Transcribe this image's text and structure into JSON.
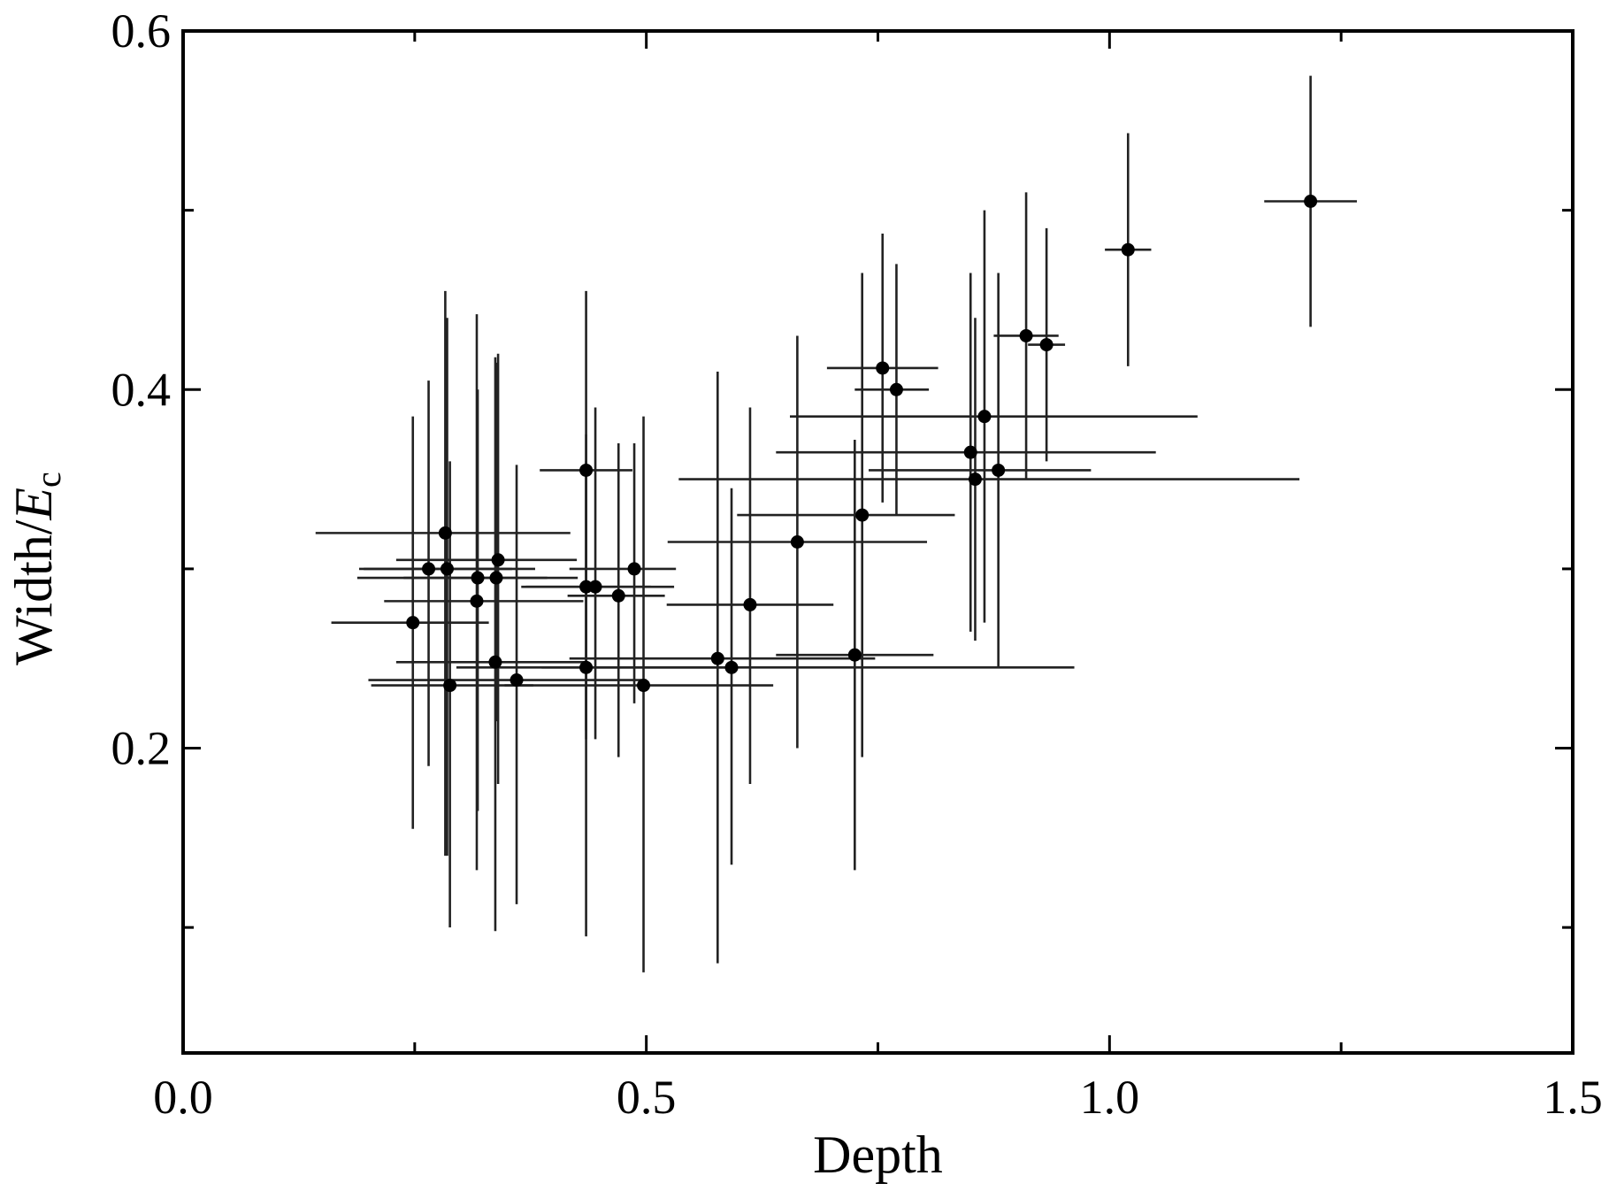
{
  "chart_data": {
    "type": "scatter",
    "title": "",
    "xlabel": "Depth",
    "ylabel_prefix": "Width/",
    "ylabel_var": "E",
    "ylabel_sub": "c",
    "xlim": [
      0.0,
      1.5
    ],
    "ylim": [
      0.03,
      0.6
    ],
    "x_ticks": [
      {
        "value": 0.0,
        "label": "0.0"
      },
      {
        "value": 0.5,
        "label": "0.5"
      },
      {
        "value": 1.0,
        "label": "1.0"
      },
      {
        "value": 1.5,
        "label": "1.5"
      }
    ],
    "x_minor_ticks": [
      0.25,
      0.75,
      1.25
    ],
    "y_ticks": [
      {
        "value": 0.2,
        "label": "0.2"
      },
      {
        "value": 0.4,
        "label": "0.4"
      },
      {
        "value": 0.6,
        "label": "0.6"
      }
    ],
    "y_minor_ticks": [
      0.1,
      0.3,
      0.5
    ],
    "grid": false,
    "marker_color": "#000000",
    "points": [
      {
        "x": 0.248,
        "y": 0.27,
        "xerr": [
          0.088,
          0.082
        ],
        "yerr": [
          0.115,
          0.115
        ]
      },
      {
        "x": 0.265,
        "y": 0.3,
        "xerr": [
          0.075,
          0.09
        ],
        "yerr": [
          0.11,
          0.105
        ]
      },
      {
        "x": 0.283,
        "y": 0.32,
        "xerr": [
          0.14,
          0.135
        ],
        "yerr": [
          0.18,
          0.135
        ]
      },
      {
        "x": 0.285,
        "y": 0.3,
        "xerr": [
          0.09,
          0.095
        ],
        "yerr": [
          0.16,
          0.14
        ]
      },
      {
        "x": 0.288,
        "y": 0.235,
        "xerr": [
          0.085,
          0.09
        ],
        "yerr": [
          0.135,
          0.125
        ]
      },
      {
        "x": 0.317,
        "y": 0.282,
        "xerr": [
          0.1,
          0.115
        ],
        "yerr": [
          0.15,
          0.16
        ]
      },
      {
        "x": 0.318,
        "y": 0.295,
        "xerr": [
          0.13,
          0.075
        ],
        "yerr": [
          0.13,
          0.105
        ]
      },
      {
        "x": 0.337,
        "y": 0.248,
        "xerr": [
          0.107,
          0.1
        ],
        "yerr": [
          0.15,
          0.17
        ]
      },
      {
        "x": 0.338,
        "y": 0.295,
        "xerr": [
          0.1,
          0.088
        ],
        "yerr": [
          0.08,
          0.12
        ]
      },
      {
        "x": 0.34,
        "y": 0.305,
        "xerr": [
          0.11,
          0.085
        ],
        "yerr": [
          0.125,
          0.115
        ]
      },
      {
        "x": 0.36,
        "y": 0.238,
        "xerr": [
          0.16,
          0.14
        ],
        "yerr": [
          0.125,
          0.12
        ]
      },
      {
        "x": 0.435,
        "y": 0.355,
        "xerr": [
          0.05,
          0.05
        ],
        "yerr": [
          0.26,
          0.1
        ]
      },
      {
        "x": 0.435,
        "y": 0.29,
        "xerr": [
          0.07,
          0.07
        ],
        "yerr": [
          0.08,
          0.07
        ]
      },
      {
        "x": 0.435,
        "y": 0.245,
        "xerr": [
          0.14,
          0.16
        ],
        "yerr": [
          0.04,
          0.13
        ]
      },
      {
        "x": 0.445,
        "y": 0.29,
        "xerr": [
          0.075,
          0.085
        ],
        "yerr": [
          0.085,
          0.1
        ]
      },
      {
        "x": 0.47,
        "y": 0.285,
        "xerr": [
          0.055,
          0.05
        ],
        "yerr": [
          0.09,
          0.085
        ]
      },
      {
        "x": 0.487,
        "y": 0.3,
        "xerr": [
          0.07,
          0.045
        ],
        "yerr": [
          0.075,
          0.07
        ]
      },
      {
        "x": 0.497,
        "y": 0.235,
        "xerr": [
          0.15,
          0.14
        ],
        "yerr": [
          0.16,
          0.15
        ]
      },
      {
        "x": 0.577,
        "y": 0.25,
        "xerr": [
          0.16,
          0.17
        ],
        "yerr": [
          0.17,
          0.16
        ]
      },
      {
        "x": 0.592,
        "y": 0.245,
        "xerr": [
          0.205,
          0.37
        ],
        "yerr": [
          0.11,
          0.1
        ]
      },
      {
        "x": 0.612,
        "y": 0.28,
        "xerr": [
          0.09,
          0.09
        ],
        "yerr": [
          0.1,
          0.11
        ]
      },
      {
        "x": 0.663,
        "y": 0.315,
        "xerr": [
          0.14,
          0.14
        ],
        "yerr": [
          0.115,
          0.115
        ]
      },
      {
        "x": 0.725,
        "y": 0.252,
        "xerr": [
          0.085,
          0.085
        ],
        "yerr": [
          0.12,
          0.12
        ]
      },
      {
        "x": 0.733,
        "y": 0.33,
        "xerr": [
          0.135,
          0.1
        ],
        "yerr": [
          0.135,
          0.135
        ]
      },
      {
        "x": 0.755,
        "y": 0.412,
        "xerr": [
          0.06,
          0.06
        ],
        "yerr": [
          0.075,
          0.075
        ]
      },
      {
        "x": 0.77,
        "y": 0.4,
        "xerr": [
          0.045,
          0.035
        ],
        "yerr": [
          0.07,
          0.07
        ]
      },
      {
        "x": 0.85,
        "y": 0.365,
        "xerr": [
          0.21,
          0.2
        ],
        "yerr": [
          0.1,
          0.1
        ]
      },
      {
        "x": 0.855,
        "y": 0.35,
        "xerr": [
          0.32,
          0.35
        ],
        "yerr": [
          0.09,
          0.09
        ]
      },
      {
        "x": 0.865,
        "y": 0.385,
        "xerr": [
          0.21,
          0.23
        ],
        "yerr": [
          0.115,
          0.115
        ]
      },
      {
        "x": 0.88,
        "y": 0.355,
        "xerr": [
          0.14,
          0.1
        ],
        "yerr": [
          0.11,
          0.11
        ]
      },
      {
        "x": 0.91,
        "y": 0.43,
        "xerr": [
          0.035,
          0.035
        ],
        "yerr": [
          0.08,
          0.08
        ]
      },
      {
        "x": 0.932,
        "y": 0.425,
        "xerr": [
          0.02,
          0.02
        ],
        "yerr": [
          0.065,
          0.065
        ]
      },
      {
        "x": 1.02,
        "y": 0.478,
        "xerr": [
          0.025,
          0.025
        ],
        "yerr": [
          0.065,
          0.065
        ]
      },
      {
        "x": 1.217,
        "y": 0.505,
        "xerr": [
          0.05,
          0.05
        ],
        "yerr": [
          0.07,
          0.07
        ]
      }
    ]
  }
}
